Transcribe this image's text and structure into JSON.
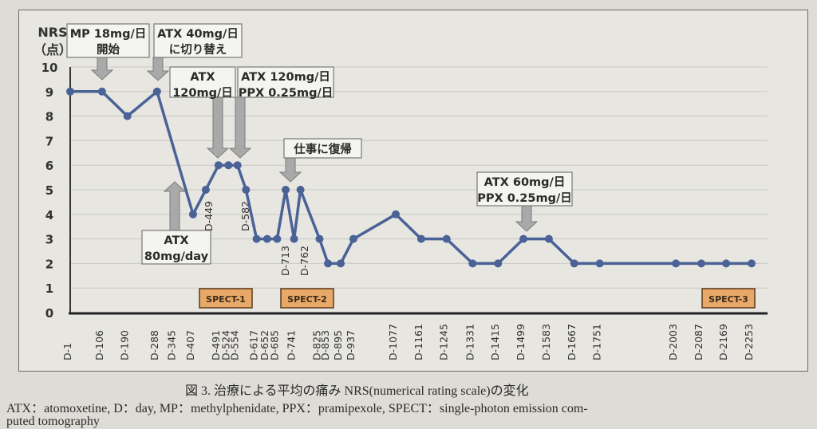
{
  "chart_data": {
    "type": "line",
    "ylabel": "NRS\n（点）",
    "ylim": [
      0,
      10
    ],
    "yticks": [
      0,
      1,
      2,
      3,
      4,
      5,
      6,
      7,
      8,
      9,
      10
    ],
    "grid": true,
    "line_color": "#4a6296",
    "x_tick_labels": [
      "D-1",
      "D-106",
      "D-190",
      "D-288",
      "D-345",
      "D-407",
      "D-491",
      "D-524",
      "D-554",
      "D-617",
      "D-652",
      "D-685",
      "D-741",
      "D-825",
      "D-853",
      "D-895",
      "D-937",
      "D-1077",
      "D-1161",
      "D-1245",
      "D-1331",
      "D-1415",
      "D-1499",
      "D-1583",
      "D-1667",
      "D-1751",
      "D-2003",
      "D-2087",
      "D-2169",
      "D-2253"
    ],
    "inline_day_labels": [
      "D-449",
      "D-582",
      "D-713",
      "D-762"
    ],
    "series": [
      {
        "x": [
          1,
          106,
          190,
          288,
          407,
          449,
          491,
          524,
          554,
          582,
          617,
          652,
          685,
          713,
          741,
          762,
          825,
          853,
          895,
          937,
          1077,
          1161,
          1245,
          1331,
          1415,
          1499,
          1583,
          1667,
          1751,
          2003,
          2087,
          2169,
          2253
        ],
        "y": [
          9,
          9,
          8,
          9,
          4,
          5,
          6,
          6,
          6,
          5,
          3,
          3,
          3,
          5,
          3,
          5,
          3,
          2,
          2,
          3,
          4,
          3,
          3,
          2,
          2,
          3,
          3,
          2,
          2,
          2,
          2,
          2,
          2
        ]
      }
    ],
    "annotations": [
      {
        "lines": [
          "MP 18mg/日",
          "開始"
        ],
        "day": 106
      },
      {
        "lines": [
          "ATX 40mg/日",
          "に切り替え"
        ],
        "day": 288
      },
      {
        "lines": [
          "ATX",
          "120mg/日"
        ],
        "day": 491
      },
      {
        "lines": [
          "ATX 120mg/日",
          "PPX 0.25mg/日"
        ],
        "day": 554
      },
      {
        "lines": [
          "仕事に復帰"
        ],
        "day": 713
      },
      {
        "lines": [
          "ATX",
          "80mg/day"
        ],
        "day": 345
      },
      {
        "lines": [
          "ATX 60mg/日",
          "PPX 0.25mg/日"
        ],
        "day": 1499
      }
    ],
    "markers": [
      {
        "label": "SPECT-1",
        "color": "#e8a868"
      },
      {
        "label": "SPECT-2",
        "color": "#e8a868"
      },
      {
        "label": "SPECT-3",
        "color": "#e8a868"
      }
    ]
  },
  "caption": {
    "title": "図 3.  治療による平均の痛み NRS(numerical rating scale)の変化",
    "abbrev": "ATX：atomoxetine,  D：day,  MP：methylphenidate,  PPX：pramipexole,  SPECT：single-photon emission com-",
    "abbrev_cont": "puted tomography"
  }
}
